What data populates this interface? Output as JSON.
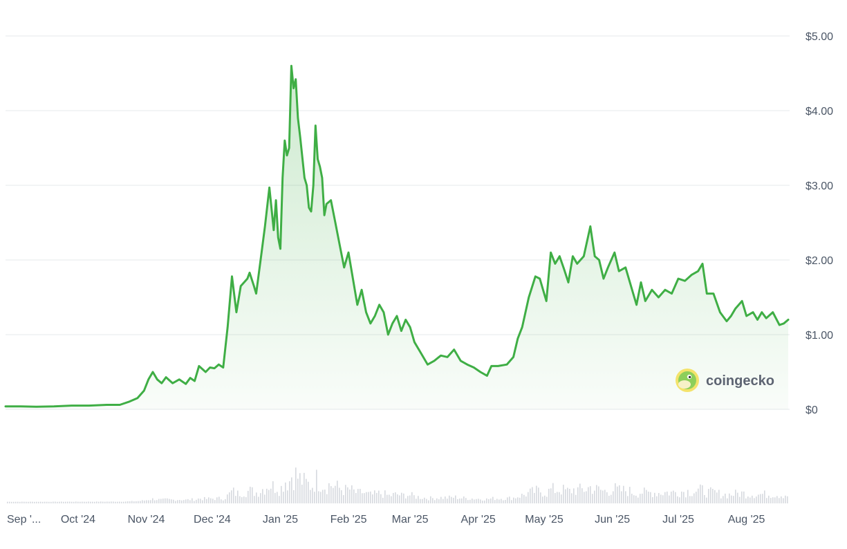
{
  "chart_data": {
    "type": "area",
    "title": "",
    "xlabel": "",
    "ylabel": "",
    "ylim": [
      0,
      5
    ],
    "y_ticks": [
      {
        "value": 5,
        "label": "$5.00"
      },
      {
        "value": 4,
        "label": "$4.00"
      },
      {
        "value": 3,
        "label": "$3.00"
      },
      {
        "value": 2,
        "label": "$2.00"
      },
      {
        "value": 1,
        "label": "$1.00"
      },
      {
        "value": 0,
        "label": "$0"
      }
    ],
    "x_ticks": [
      {
        "date": "2024-09-01",
        "label": "Sep '..."
      },
      {
        "date": "2024-10-01",
        "label": "Oct '24"
      },
      {
        "date": "2024-11-01",
        "label": "Nov '24"
      },
      {
        "date": "2024-12-01",
        "label": "Dec '24"
      },
      {
        "date": "2025-01-01",
        "label": "Jan '25"
      },
      {
        "date": "2025-02-01",
        "label": "Feb '25"
      },
      {
        "date": "2025-03-01",
        "label": "Mar '25"
      },
      {
        "date": "2025-04-01",
        "label": "Apr '25"
      },
      {
        "date": "2025-05-01",
        "label": "May '25"
      },
      {
        "date": "2025-06-01",
        "label": "Jun '25"
      },
      {
        "date": "2025-07-01",
        "label": "Jul '25"
      },
      {
        "date": "2025-08-01",
        "label": "Aug '25"
      }
    ],
    "grid": true,
    "line_color": "#3fae45",
    "fill_color": "#3fae45",
    "volume_color": "#d6d9de",
    "series": [
      {
        "points": [
          [
            "2024-08-29",
            0.04
          ],
          [
            "2024-09-05",
            0.04
          ],
          [
            "2024-09-12",
            0.035
          ],
          [
            "2024-09-20",
            0.04
          ],
          [
            "2024-09-28",
            0.05
          ],
          [
            "2024-10-06",
            0.05
          ],
          [
            "2024-10-14",
            0.06
          ],
          [
            "2024-10-20",
            0.06
          ],
          [
            "2024-10-24",
            0.1
          ],
          [
            "2024-10-28",
            0.15
          ],
          [
            "2024-10-31",
            0.25
          ],
          [
            "2024-11-02",
            0.4
          ],
          [
            "2024-11-04",
            0.5
          ],
          [
            "2024-11-06",
            0.4
          ],
          [
            "2024-11-08",
            0.35
          ],
          [
            "2024-11-10",
            0.43
          ],
          [
            "2024-11-13",
            0.35
          ],
          [
            "2024-11-16",
            0.4
          ],
          [
            "2024-11-19",
            0.34
          ],
          [
            "2024-11-21",
            0.42
          ],
          [
            "2024-11-23",
            0.38
          ],
          [
            "2024-11-25",
            0.58
          ],
          [
            "2024-11-28",
            0.5
          ],
          [
            "2024-11-30",
            0.56
          ],
          [
            "2024-12-02",
            0.55
          ],
          [
            "2024-12-04",
            0.6
          ],
          [
            "2024-12-06",
            0.56
          ],
          [
            "2024-12-08",
            1.1
          ],
          [
            "2024-12-10",
            1.78
          ],
          [
            "2024-12-12",
            1.3
          ],
          [
            "2024-12-14",
            1.65
          ],
          [
            "2024-12-17",
            1.75
          ],
          [
            "2024-12-18",
            1.83
          ],
          [
            "2024-12-20",
            1.65
          ],
          [
            "2024-12-21",
            1.55
          ],
          [
            "2024-12-23",
            2.0
          ],
          [
            "2024-12-25",
            2.45
          ],
          [
            "2024-12-27",
            2.97
          ],
          [
            "2024-12-29",
            2.4
          ],
          [
            "2024-12-30",
            2.8
          ],
          [
            "2024-12-31",
            2.3
          ],
          [
            "2025-01-01",
            2.15
          ],
          [
            "2025-01-02",
            3.1
          ],
          [
            "2025-01-03",
            3.6
          ],
          [
            "2025-01-04",
            3.4
          ],
          [
            "2025-01-05",
            3.5
          ],
          [
            "2025-01-06",
            4.6
          ],
          [
            "2025-01-07",
            4.3
          ],
          [
            "2025-01-08",
            4.42
          ],
          [
            "2025-01-09",
            3.9
          ],
          [
            "2025-01-10",
            3.65
          ],
          [
            "2025-01-12",
            3.1
          ],
          [
            "2025-01-13",
            3.0
          ],
          [
            "2025-01-14",
            2.7
          ],
          [
            "2025-01-15",
            2.65
          ],
          [
            "2025-01-16",
            3.0
          ],
          [
            "2025-01-17",
            3.8
          ],
          [
            "2025-01-18",
            3.35
          ],
          [
            "2025-01-19",
            3.25
          ],
          [
            "2025-01-20",
            3.1
          ],
          [
            "2025-01-21",
            2.6
          ],
          [
            "2025-01-22",
            2.75
          ],
          [
            "2025-01-24",
            2.8
          ],
          [
            "2025-01-26",
            2.5
          ],
          [
            "2025-01-28",
            2.2
          ],
          [
            "2025-01-30",
            1.9
          ],
          [
            "2025-02-01",
            2.1
          ],
          [
            "2025-02-03",
            1.75
          ],
          [
            "2025-02-05",
            1.4
          ],
          [
            "2025-02-07",
            1.6
          ],
          [
            "2025-02-09",
            1.3
          ],
          [
            "2025-02-11",
            1.15
          ],
          [
            "2025-02-13",
            1.25
          ],
          [
            "2025-02-15",
            1.4
          ],
          [
            "2025-02-17",
            1.3
          ],
          [
            "2025-02-19",
            1.0
          ],
          [
            "2025-02-21",
            1.15
          ],
          [
            "2025-02-23",
            1.25
          ],
          [
            "2025-02-25",
            1.05
          ],
          [
            "2025-02-27",
            1.2
          ],
          [
            "2025-03-01",
            1.1
          ],
          [
            "2025-03-03",
            0.9
          ],
          [
            "2025-03-06",
            0.75
          ],
          [
            "2025-03-09",
            0.6
          ],
          [
            "2025-03-12",
            0.65
          ],
          [
            "2025-03-15",
            0.72
          ],
          [
            "2025-03-18",
            0.7
          ],
          [
            "2025-03-21",
            0.8
          ],
          [
            "2025-03-24",
            0.65
          ],
          [
            "2025-03-27",
            0.6
          ],
          [
            "2025-03-30",
            0.56
          ],
          [
            "2025-04-02",
            0.5
          ],
          [
            "2025-04-05",
            0.45
          ],
          [
            "2025-04-07",
            0.58
          ],
          [
            "2025-04-10",
            0.58
          ],
          [
            "2025-04-14",
            0.6
          ],
          [
            "2025-04-17",
            0.7
          ],
          [
            "2025-04-19",
            0.95
          ],
          [
            "2025-04-21",
            1.1
          ],
          [
            "2025-04-24",
            1.5
          ],
          [
            "2025-04-27",
            1.78
          ],
          [
            "2025-04-29",
            1.75
          ],
          [
            "2025-05-02",
            1.45
          ],
          [
            "2025-05-04",
            2.1
          ],
          [
            "2025-05-06",
            1.95
          ],
          [
            "2025-05-08",
            2.05
          ],
          [
            "2025-05-10",
            1.88
          ],
          [
            "2025-05-12",
            1.7
          ],
          [
            "2025-05-14",
            2.05
          ],
          [
            "2025-05-16",
            1.95
          ],
          [
            "2025-05-19",
            2.05
          ],
          [
            "2025-05-22",
            2.45
          ],
          [
            "2025-05-24",
            2.05
          ],
          [
            "2025-05-26",
            2.0
          ],
          [
            "2025-05-28",
            1.75
          ],
          [
            "2025-05-30",
            1.9
          ],
          [
            "2025-06-02",
            2.1
          ],
          [
            "2025-06-04",
            1.85
          ],
          [
            "2025-06-07",
            1.9
          ],
          [
            "2025-06-10",
            1.6
          ],
          [
            "2025-06-12",
            1.4
          ],
          [
            "2025-06-14",
            1.7
          ],
          [
            "2025-06-16",
            1.45
          ],
          [
            "2025-06-19",
            1.6
          ],
          [
            "2025-06-22",
            1.5
          ],
          [
            "2025-06-25",
            1.6
          ],
          [
            "2025-06-28",
            1.55
          ],
          [
            "2025-07-01",
            1.75
          ],
          [
            "2025-07-04",
            1.72
          ],
          [
            "2025-07-07",
            1.8
          ],
          [
            "2025-07-10",
            1.85
          ],
          [
            "2025-07-12",
            1.95
          ],
          [
            "2025-07-14",
            1.55
          ],
          [
            "2025-07-17",
            1.55
          ],
          [
            "2025-07-20",
            1.3
          ],
          [
            "2025-07-23",
            1.18
          ],
          [
            "2025-07-25",
            1.25
          ],
          [
            "2025-07-27",
            1.35
          ],
          [
            "2025-07-30",
            1.45
          ],
          [
            "2025-08-01",
            1.25
          ],
          [
            "2025-08-04",
            1.3
          ],
          [
            "2025-08-06",
            1.2
          ],
          [
            "2025-08-08",
            1.3
          ],
          [
            "2025-08-10",
            1.22
          ],
          [
            "2025-08-13",
            1.3
          ],
          [
            "2025-08-16",
            1.13
          ],
          [
            "2025-08-18",
            1.15
          ],
          [
            "2025-08-20",
            1.2
          ]
        ]
      }
    ]
  },
  "watermark": {
    "brand": "coingecko",
    "icon": "gecko-logo-icon"
  }
}
